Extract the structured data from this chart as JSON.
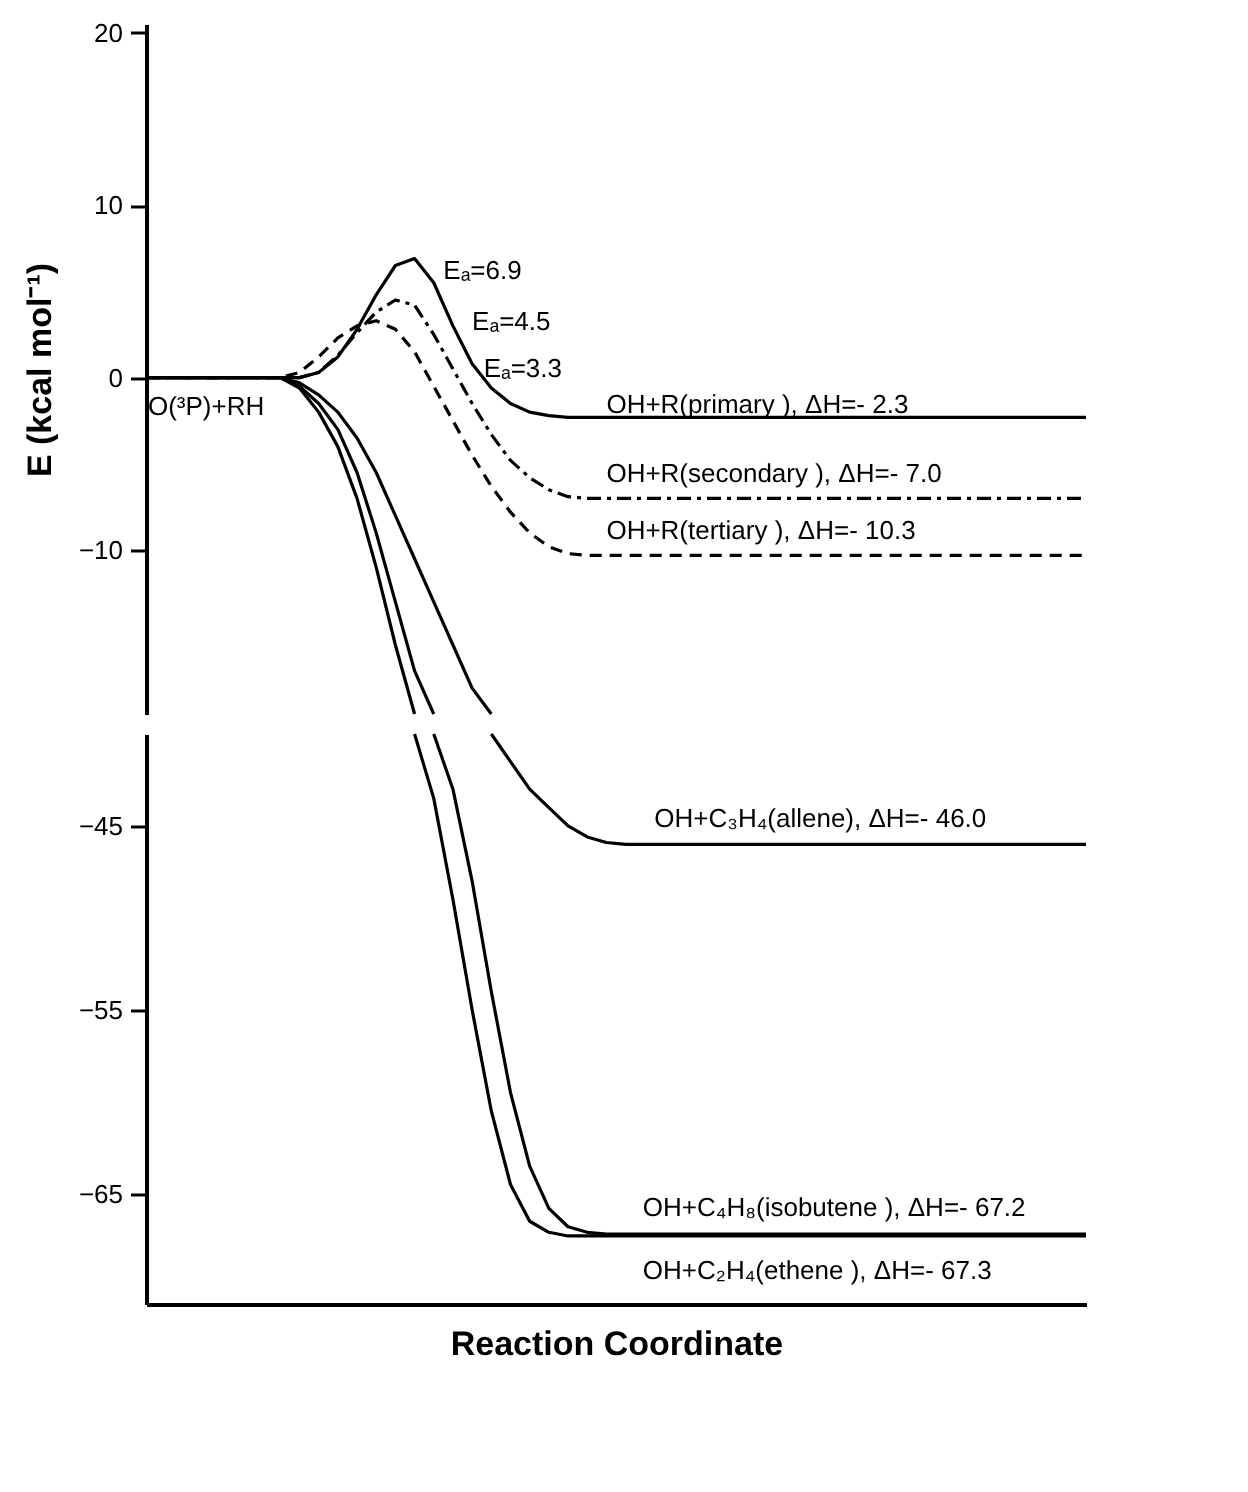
{
  "chart_data": [
    {
      "type": "line",
      "ylabel": "E (kcal mol⁻¹)",
      "categories": [
        null,
        null,
        null,
        null,
        null,
        null,
        null,
        null,
        null,
        null,
        null,
        null,
        null,
        null,
        null,
        null,
        null,
        null,
        null,
        null,
        null,
        null,
        null,
        null,
        null,
        null,
        null,
        null,
        null,
        null,
        null,
        null,
        null,
        null,
        null,
        null,
        null,
        null,
        null,
        null,
        null,
        null,
        null,
        null,
        null,
        null,
        null,
        null,
        null,
        null
      ],
      "ylim": [
        -19.5,
        20.5
      ],
      "yticks": [
        -10,
        0,
        10,
        20
      ],
      "grid": false,
      "tick_labels": "y",
      "series": [
        {
          "color": "#000000",
          "line_style": "solid",
          "values": [
            0,
            0,
            0,
            0,
            0,
            0,
            0,
            0,
            0,
            0.3,
            1.2,
            2.8,
            4.8,
            6.5,
            6.9,
            5.5,
            3.0,
            0.8,
            -0.6,
            -1.5,
            -2.0,
            -2.2,
            -2.3,
            -2.3,
            -2.3,
            -2.3,
            -2.3,
            -2.3,
            -2.3,
            -2.3,
            -2.3,
            -2.3,
            -2.3,
            -2.3,
            -2.3,
            -2.3,
            -2.3,
            -2.3,
            -2.3,
            -2.3,
            -2.3,
            -2.3,
            -2.3,
            -2.3,
            -2.3,
            -2.3,
            -2.3,
            -2.3,
            -2.3,
            -2.3
          ]
        },
        {
          "color": "#000000",
          "line_style": "dotted",
          "values": [
            0,
            0,
            0,
            0,
            0,
            0,
            0,
            0,
            0,
            0.3,
            1.3,
            2.6,
            3.8,
            4.5,
            4.2,
            2.5,
            0.5,
            -1.5,
            -3.3,
            -4.8,
            -5.8,
            -6.5,
            -6.9,
            -7.0,
            -7.0,
            -7.0,
            -7.0,
            -7.0,
            -7.0,
            -7.0,
            -7.0,
            -7.0,
            -7.0,
            -7.0,
            -7.0,
            -7.0,
            -7.0,
            -7.0,
            -7.0,
            -7.0,
            -7.0,
            -7.0,
            -7.0,
            -7.0,
            -7.0,
            -7.0,
            -7.0,
            -7.0,
            -7.0,
            -7.0
          ]
        },
        {
          "color": "#000000",
          "line_style": "dashed",
          "values": [
            0,
            0,
            0,
            0,
            0,
            0,
            0,
            0,
            0.3,
            1.2,
            2.3,
            3.0,
            3.3,
            2.8,
            1.5,
            -0.5,
            -2.5,
            -4.5,
            -6.3,
            -7.8,
            -9.0,
            -9.8,
            -10.2,
            -10.3,
            -10.3,
            -10.3,
            -10.3,
            -10.3,
            -10.3,
            -10.3,
            -10.3,
            -10.3,
            -10.3,
            -10.3,
            -10.3,
            -10.3,
            -10.3,
            -10.3,
            -10.3,
            -10.3,
            -10.3,
            -10.3,
            -10.3,
            -10.3,
            -10.3,
            -10.3,
            -10.3,
            -10.3,
            -10.3,
            -10.3
          ]
        },
        {
          "color": "#000000",
          "line_style": "solid",
          "values": [
            0,
            0,
            0,
            0,
            0,
            0,
            0,
            0,
            -0.3,
            -1,
            -2,
            -3.5,
            -5.5,
            -8,
            -10.5,
            -13,
            -15.5,
            -18,
            -19.5,
            null,
            null,
            null,
            null,
            null,
            null,
            null,
            null,
            null,
            null,
            null,
            null,
            null,
            null,
            null,
            null,
            null,
            null,
            null,
            null,
            null,
            null,
            null,
            null,
            null,
            null,
            null,
            null,
            null,
            null,
            null
          ]
        },
        {
          "color": "#000000",
          "line_style": "solid",
          "values": [
            0,
            0,
            0,
            0,
            0,
            0,
            0,
            0,
            -0.5,
            -1.5,
            -3,
            -5.5,
            -9,
            -13,
            -17,
            -19.5,
            null,
            null,
            null,
            null,
            null,
            null,
            null,
            null,
            null,
            null,
            null,
            null,
            null,
            null,
            null,
            null,
            null,
            null,
            null,
            null,
            null,
            null,
            null,
            null,
            null,
            null,
            null,
            null,
            null,
            null,
            null,
            null,
            null,
            null
          ]
        },
        {
          "color": "#000000",
          "line_style": "solid",
          "values": [
            0,
            0,
            0,
            0,
            0,
            0,
            0,
            0,
            -0.6,
            -2,
            -4,
            -7,
            -11,
            -15.5,
            -19.5,
            null,
            null,
            null,
            null,
            null,
            null,
            null,
            null,
            null,
            null,
            null,
            null,
            null,
            null,
            null,
            null,
            null,
            null,
            null,
            null,
            null,
            null,
            null,
            null,
            null,
            null,
            null,
            null,
            null,
            null,
            null,
            null,
            null,
            null,
            null
          ]
        }
      ],
      "annotations": [
        "O(³P)+RH",
        "Eₐ=6.9",
        "Eₐ=4.5",
        "Eₐ=3.3",
        "OH+R(primary ), ΔH=- 2.3",
        "OH+R(secondary ), ΔH=- 7.0",
        "OH+R(tertiary ), ΔH=- 10.3"
      ]
    },
    {
      "type": "line",
      "xlabel": "Reaction Coordinate",
      "categories": [
        null,
        null,
        null,
        null,
        null,
        null,
        null,
        null,
        null,
        null,
        null,
        null,
        null,
        null,
        null,
        null,
        null,
        null,
        null,
        null,
        null,
        null,
        null,
        null,
        null,
        null,
        null,
        null,
        null,
        null,
        null,
        null,
        null,
        null,
        null,
        null,
        null,
        null,
        null,
        null,
        null,
        null,
        null,
        null,
        null,
        null,
        null,
        null,
        null,
        null
      ],
      "ylim": [
        -71,
        -40
      ],
      "yticks": [
        -45,
        -55,
        -65
      ],
      "grid": false,
      "tick_labels": "y",
      "series": [
        {
          "color": "#000000",
          "line_style": "solid",
          "values": [
            null,
            null,
            null,
            null,
            null,
            null,
            null,
            null,
            null,
            null,
            null,
            null,
            null,
            null,
            null,
            null,
            null,
            null,
            -40,
            -41.5,
            -43,
            -44,
            -45,
            -45.6,
            -45.9,
            -46.0,
            -46.0,
            -46.0,
            -46.0,
            -46.0,
            -46.0,
            -46.0,
            -46.0,
            -46.0,
            -46.0,
            -46.0,
            -46.0,
            -46.0,
            -46.0,
            -46.0,
            -46.0,
            -46.0,
            -46.0,
            -46.0,
            -46.0,
            -46.0,
            -46.0,
            -46.0,
            -46.0,
            -46.0
          ]
        },
        {
          "color": "#000000",
          "line_style": "solid",
          "values": [
            null,
            null,
            null,
            null,
            null,
            null,
            null,
            null,
            null,
            null,
            null,
            null,
            null,
            null,
            null,
            -40,
            -43,
            -48,
            -54,
            -59.5,
            -63.5,
            -65.8,
            -66.8,
            -67.1,
            -67.2,
            -67.2,
            -67.2,
            -67.2,
            -67.2,
            -67.2,
            -67.2,
            -67.2,
            -67.2,
            -67.2,
            -67.2,
            -67.2,
            -67.2,
            -67.2,
            -67.2,
            -67.2,
            -67.2,
            -67.2,
            -67.2,
            -67.2,
            -67.2,
            -67.2,
            -67.2,
            -67.2,
            -67.2,
            -67.2
          ]
        },
        {
          "color": "#000000",
          "line_style": "solid",
          "values": [
            null,
            null,
            null,
            null,
            null,
            null,
            null,
            null,
            null,
            null,
            null,
            null,
            null,
            null,
            -40,
            -43.5,
            -49,
            -55,
            -60.5,
            -64.5,
            -66.5,
            -67.1,
            -67.3,
            -67.3,
            -67.3,
            -67.3,
            -67.3,
            -67.3,
            -67.3,
            -67.3,
            -67.3,
            -67.3,
            -67.3,
            -67.3,
            -67.3,
            -67.3,
            -67.3,
            -67.3,
            -67.3,
            -67.3,
            -67.3,
            -67.3,
            -67.3,
            -67.3,
            -67.3,
            -67.3,
            -67.3,
            -67.3,
            -67.3,
            -67.3
          ]
        }
      ],
      "annotations": [
        "OH+C₃H₄(allene), ΔH=- 46.0",
        "OH+C₄H₈(isobutene ), ΔH=- 67.2",
        "OH+C₂H₄(ethene ), ΔH=- 67.3"
      ]
    }
  ]
}
